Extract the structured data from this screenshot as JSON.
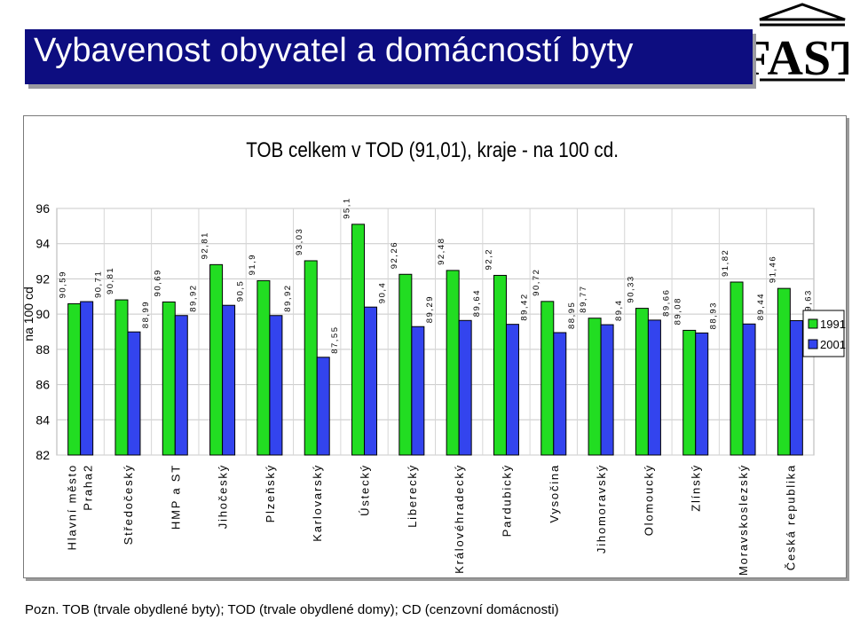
{
  "header": {
    "title": "Vybavenost obyvatel a domácností byty",
    "logo_text": "FAST"
  },
  "footnote": "Pozn. TOB (trvale obydlené byty); TOD (trvale obydlené domy); CD (cenzovní domácnosti)",
  "colors": {
    "banner": "#0d0d80",
    "series_1991": "#22dd22",
    "series_2001": "#3344ee"
  },
  "chart_data": {
    "type": "bar",
    "title": "TOB celkem v TOD (91,01), kraje - na 100 cd.",
    "ylabel": "na 100 cd",
    "xlabel": "",
    "ylim": [
      82,
      96
    ],
    "yticks": [
      "82",
      "84",
      "86",
      "88",
      "90",
      "92",
      "94",
      "96"
    ],
    "grid": true,
    "legend_position": "right",
    "categories": [
      [
        "Hlavní město",
        "Praha2"
      ],
      [
        "Středočeský"
      ],
      [
        "HMP a ST"
      ],
      [
        "Jihočeský"
      ],
      [
        "Plzeňský"
      ],
      [
        "Karlovarský"
      ],
      [
        "Ústecký"
      ],
      [
        "Liberecký"
      ],
      [
        "Královéhradecký"
      ],
      [
        "Pardubický"
      ],
      [
        "Vysočina"
      ],
      [
        "Jihomoravský"
      ],
      [
        "Olomoucký"
      ],
      [
        "Zlínský"
      ],
      [
        "Moravskoslezský"
      ],
      [
        "Česká republika"
      ]
    ],
    "series": [
      {
        "name": "1991",
        "values": [
          90.59,
          90.81,
          90.69,
          92.81,
          91.9,
          93.03,
          95.1,
          92.26,
          92.48,
          92.2,
          90.72,
          89.77,
          90.33,
          89.08,
          91.82,
          91.46
        ],
        "labels": [
          "90,59",
          "90,81",
          "90,69",
          "92,81",
          "91,9",
          "93,03",
          "95,1",
          "92,26",
          "92,48",
          "92,2",
          "90,72",
          "89,77",
          "90,33",
          "89,08",
          "91,82",
          "91,46"
        ]
      },
      {
        "name": "2001",
        "values": [
          90.71,
          88.99,
          89.92,
          90.5,
          89.92,
          87.55,
          90.4,
          89.29,
          89.64,
          89.42,
          88.95,
          89.4,
          89.66,
          88.93,
          89.44,
          89.63
        ],
        "labels": [
          "90,71",
          "88,99",
          "89,92",
          "90,5",
          "89,92",
          "87,55",
          "90,4",
          "89,29",
          "89,64",
          "89,42",
          "88,95",
          "89,4",
          "89,66",
          "88,93",
          "89,44",
          "89,63"
        ]
      }
    ]
  }
}
